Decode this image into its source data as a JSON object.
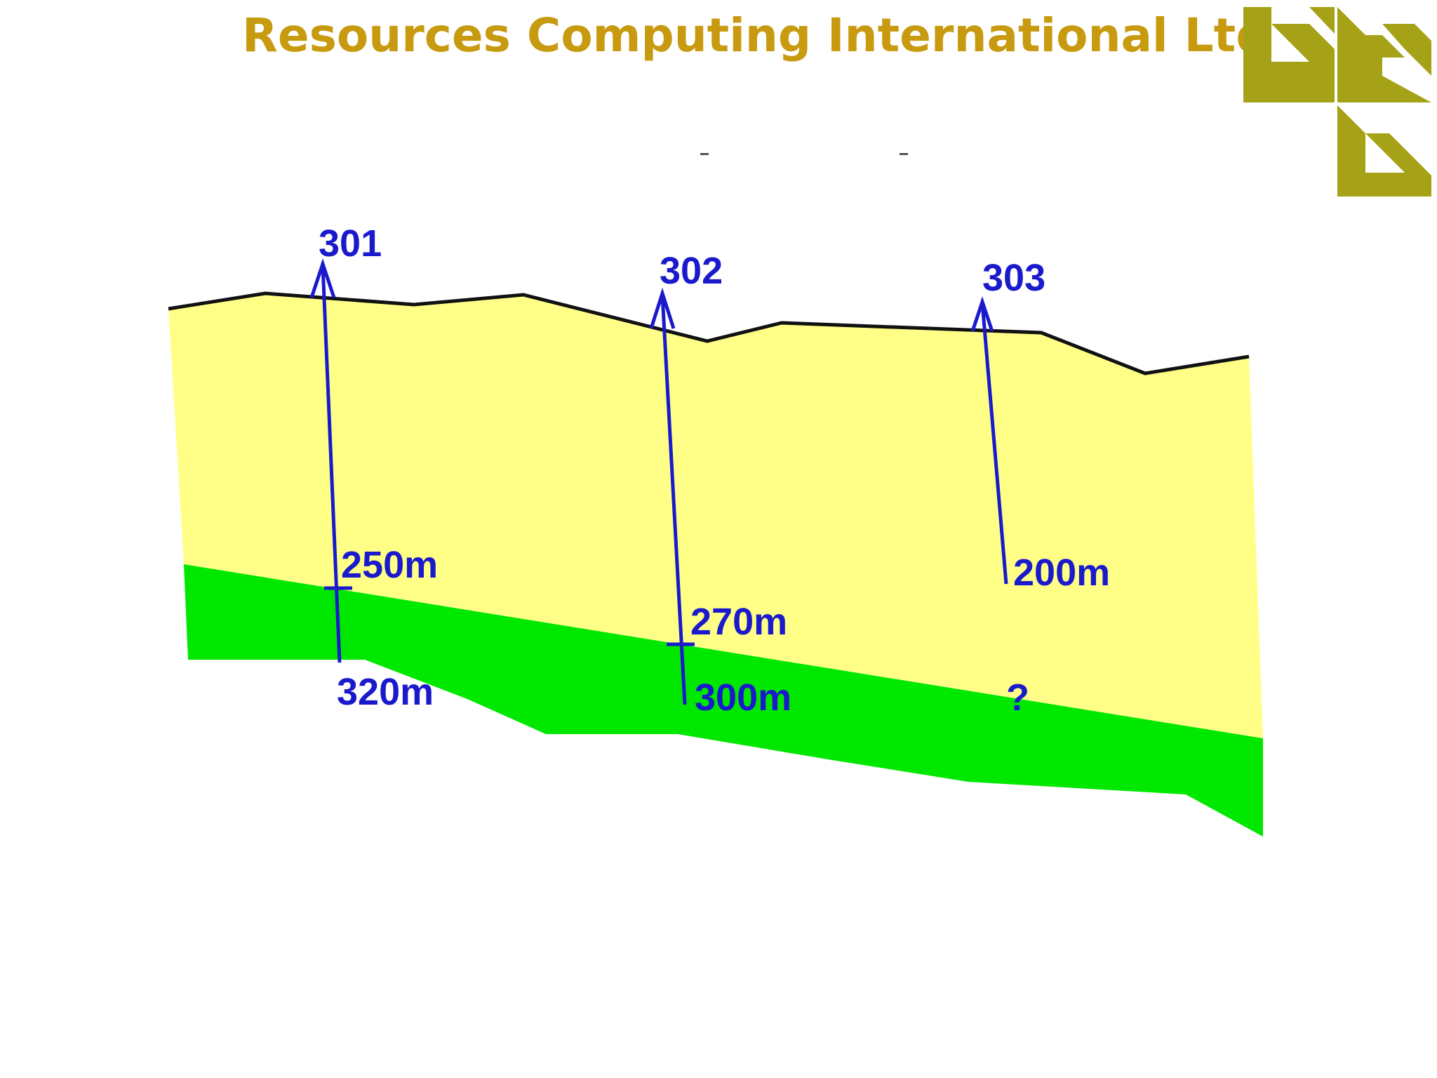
{
  "header": {
    "company_name": "Resources Computing International Ltd",
    "company_color": "#c89a10",
    "logo": {
      "name": "rci-logo",
      "color": "#a6a218"
    }
  },
  "section": {
    "colors": {
      "upper_layer": "#ffff88",
      "lower_layer": "#00e800",
      "surface_line": "#111111",
      "drillhole": "#1a1acc"
    },
    "drillholes": [
      {
        "id": "301",
        "top_label": "301",
        "contact_label": "250m",
        "end_label": "320m"
      },
      {
        "id": "302",
        "top_label": "302",
        "contact_label": "270m",
        "end_label": "300m"
      },
      {
        "id": "303",
        "top_label": "303",
        "end_label": "200m",
        "unknown_label": "?"
      }
    ]
  }
}
